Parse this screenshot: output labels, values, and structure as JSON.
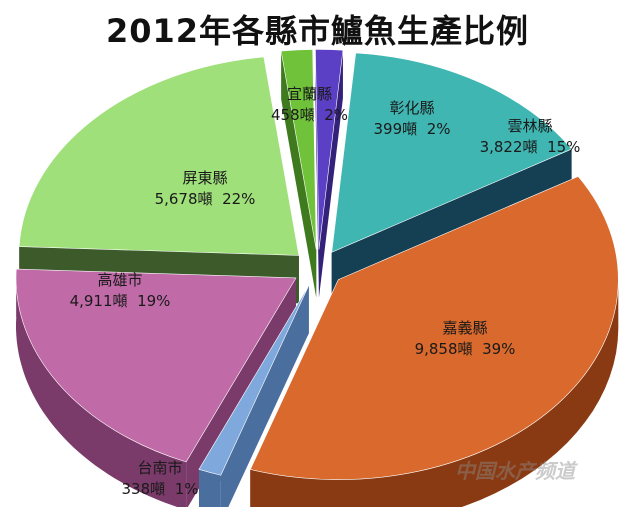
{
  "chart_data": {
    "type": "pie",
    "title": "2012年各縣市鱸魚生產比例",
    "slices": [
      {
        "name": "宜蘭縣",
        "value": 458,
        "value_label": "458噸",
        "percent_label": "2%",
        "color": "#6fc23a",
        "side": "#3f7a1e"
      },
      {
        "name": "彰化縣",
        "value": 399,
        "value_label": "399噸",
        "percent_label": "2%",
        "color": "#5b3fc4",
        "side": "#33217a"
      },
      {
        "name": "雲林縣",
        "value": 3822,
        "value_label": "3,822噸",
        "percent_label": "15%",
        "color": "#3fb6b2",
        "side": "#153f52"
      },
      {
        "name": "嘉義縣",
        "value": 9858,
        "value_label": "9,858噸",
        "percent_label": "39%",
        "color": "#d9692c",
        "side": "#8a3a12"
      },
      {
        "name": "台南市",
        "value": 338,
        "value_label": "338噸",
        "percent_label": "1%",
        "color": "#7fa9dd",
        "side": "#4a6f9e"
      },
      {
        "name": "高雄市",
        "value": 4911,
        "value_label": "4,911噸",
        "percent_label": "19%",
        "color": "#c06aa8",
        "side": "#7a3a6a"
      },
      {
        "name": "屏東縣",
        "value": 5678,
        "value_label": "5,678噸",
        "percent_label": "22%",
        "color": "#9fe07a",
        "side": "#3d5a2a"
      }
    ]
  },
  "watermark": "中国水产频道"
}
